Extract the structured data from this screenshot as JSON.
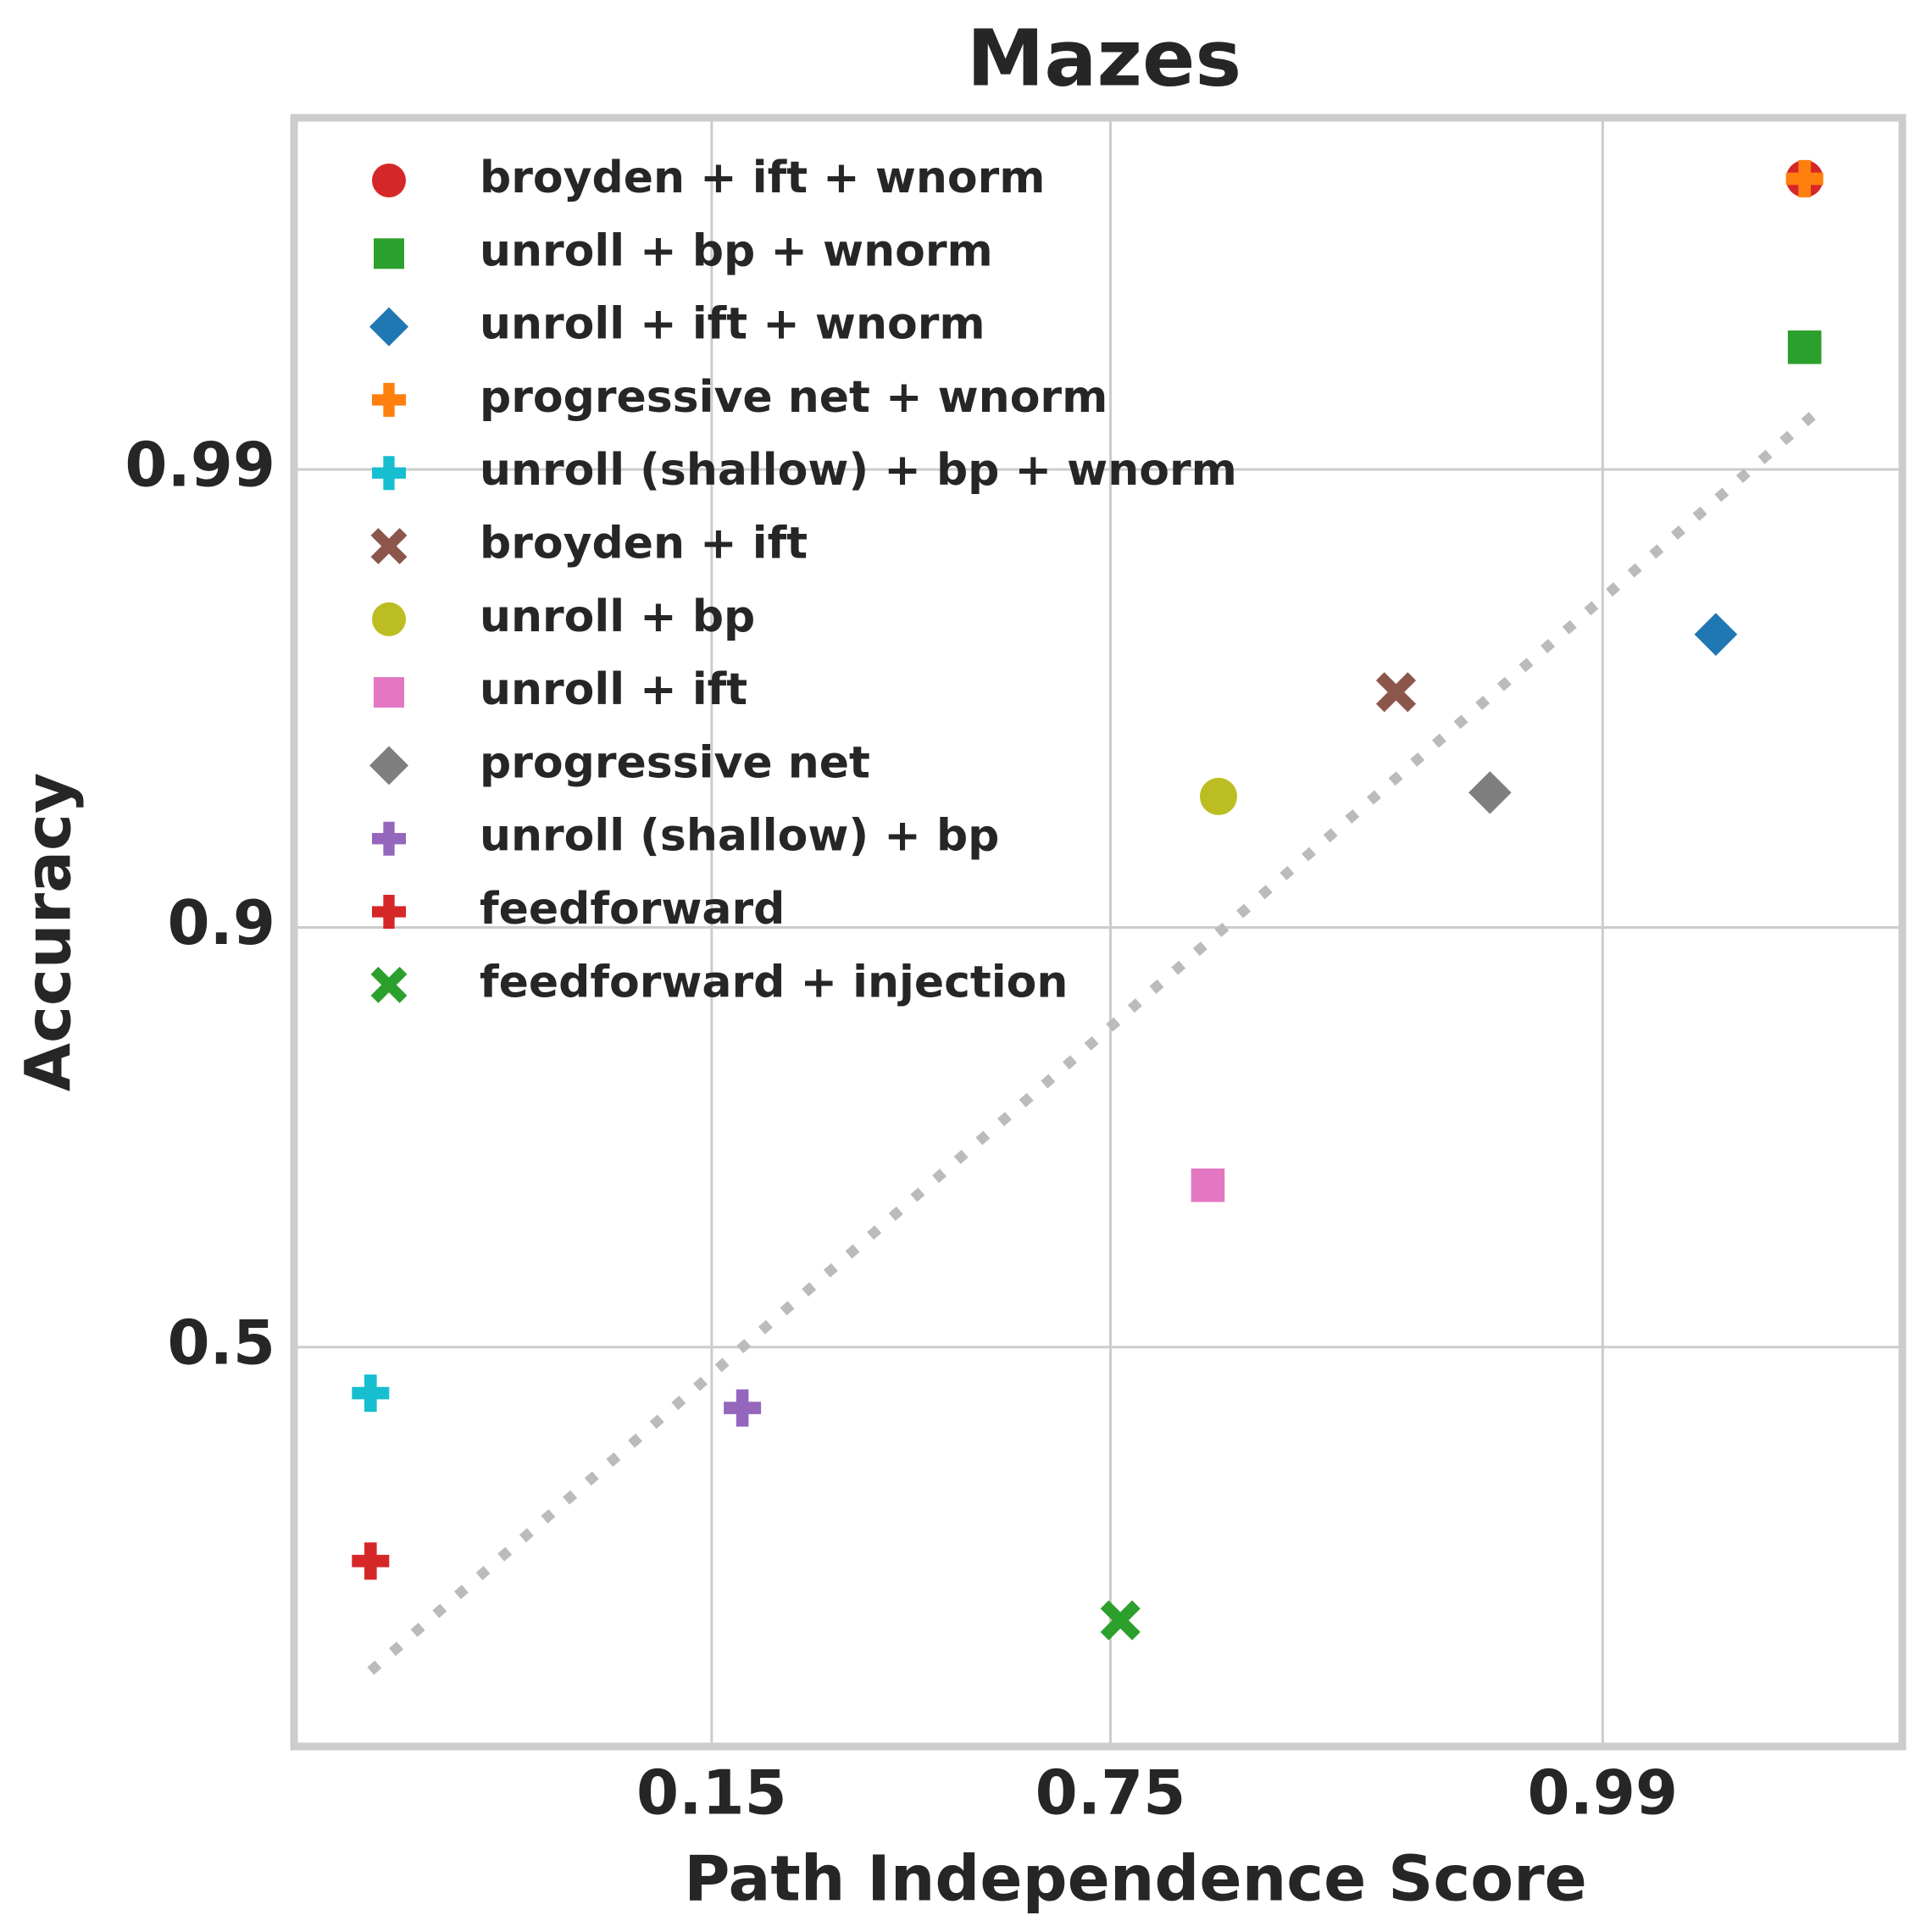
{
  "chart_data": {
    "type": "scatter",
    "title": "Mazes",
    "xlabel": "Path Independence Score",
    "ylabel": "Accuracy",
    "scale": "logit",
    "grid": true,
    "legend": "upper left",
    "xlim": [
      0.009,
      0.9988
    ],
    "ylim": [
      0.11,
      0.9984
    ],
    "xticks": [
      0.15,
      0.75,
      0.99
    ],
    "yticks": [
      0.5,
      0.9,
      0.99
    ],
    "series": [
      {
        "name": "broyden + ift + wnorm",
        "color": "#d62728",
        "marker": "circle",
        "x": [
          0.9976
        ],
        "y": [
          0.9978
        ]
      },
      {
        "name": "unroll + bp + wnorm",
        "color": "#2ca02c",
        "marker": "square",
        "x": [
          0.9976
        ],
        "y": [
          0.9947
        ]
      },
      {
        "name": "unroll + ift + wnorm",
        "color": "#1f77b4",
        "marker": "diamond",
        "x": [
          0.9955
        ],
        "y": [
          0.9766
        ]
      },
      {
        "name": "progressive net + wnorm",
        "color": "#ff7f0e",
        "marker": "plus",
        "x": [
          0.9976
        ],
        "y": [
          0.9978
        ]
      },
      {
        "name": "unroll (shallow) + bp + wnorm",
        "color": "#17becf",
        "marker": "plus",
        "x": [
          0.0154
        ],
        "y": [
          0.44
        ]
      },
      {
        "name": "broyden + ift",
        "color": "#8c564b",
        "marker": "x",
        "x": [
          0.958
        ],
        "y": [
          0.9686
        ]
      },
      {
        "name": "unroll + bp",
        "color": "#bcbd22",
        "marker": "circle",
        "x": [
          0.866
        ],
        "y": [
          0.947
        ]
      },
      {
        "name": "unroll + ift",
        "color": "#e377c2",
        "marker": "square",
        "x": [
          0.857
        ],
        "y": [
          0.7
        ]
      },
      {
        "name": "progressive net",
        "color": "#7f7f7f",
        "marker": "diamond",
        "x": [
          0.978
        ],
        "y": [
          0.948
        ]
      },
      {
        "name": "unroll (shallow) + bp",
        "color": "#9467bd",
        "marker": "plus",
        "x": [
          0.18
        ],
        "y": [
          0.421
        ]
      },
      {
        "name": "feedforward",
        "color": "#d62728",
        "marker": "plus",
        "x": [
          0.0154
        ],
        "y": [
          0.246
        ]
      },
      {
        "name": "feedforward + injection",
        "color": "#2ca02c",
        "marker": "x",
        "x": [
          0.763
        ],
        "y": [
          0.193
        ]
      }
    ],
    "trend_line": {
      "color": "#bbbbbb",
      "x": [
        0.0154,
        0.9979
      ],
      "y": [
        0.155,
        0.9928
      ]
    }
  }
}
